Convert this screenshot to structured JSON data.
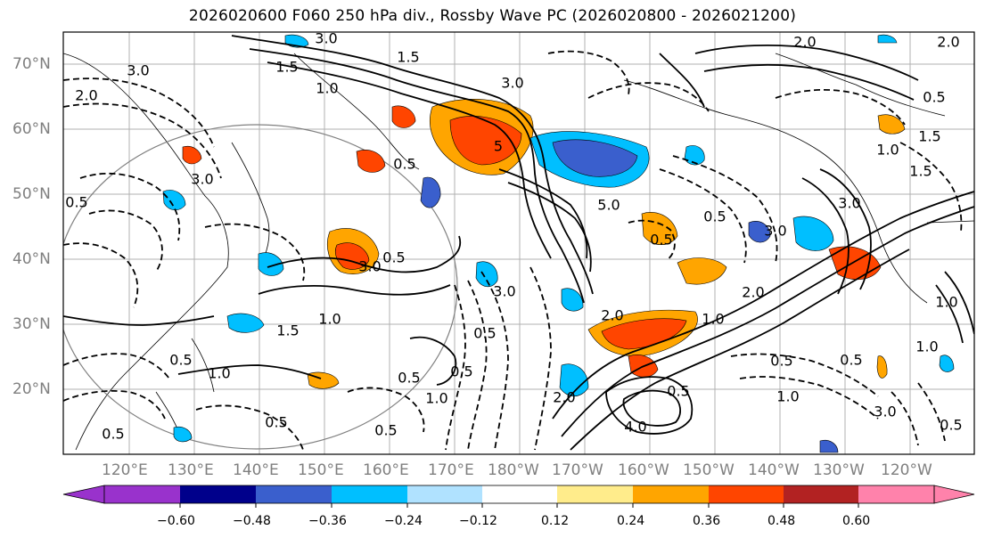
{
  "title": "2026020600 F060 250 hPa div., Rossby Wave PC (2026020800 - 2026021200)",
  "lat_labels": [
    "70°N",
    "60°N",
    "50°N",
    "40°N",
    "30°N",
    "20°N"
  ],
  "lon_labels": [
    "120°E",
    "130°E",
    "140°E",
    "150°E",
    "160°E",
    "170°E",
    "180°W",
    "170°W",
    "160°W",
    "150°W",
    "140°W",
    "130°W",
    "120°W"
  ],
  "colorbar": {
    "colors": [
      "#9932cc",
      "#00008b",
      "#3a5fcd",
      "#00bfff",
      "#b0e2ff",
      "#ffffff",
      "#ffec8b",
      "#ffa500",
      "#ff4500",
      "#b22222",
      "#ff82ab"
    ],
    "tick_labels": [
      "−0.60",
      "−0.48",
      "−0.36",
      "−0.24",
      "−0.12",
      "0.12",
      "0.24",
      "0.36",
      "0.48",
      "0.60"
    ]
  },
  "contour_labels": [
    "3.0",
    "2.0",
    "3.0",
    "2.0",
    "1.5",
    "1.0",
    "3.0",
    "3.0",
    "2.0",
    "1.5",
    "3.0",
    "1.0",
    "1.5",
    "0.5",
    "0.5",
    "3.0",
    "0.5",
    "5.0",
    "0.5",
    "3.0",
    "0.5",
    "0.5",
    "3.0",
    "2.0",
    "1.0",
    "1.5",
    "1.0",
    "1.0",
    "0.5",
    "0.5",
    "1.0",
    "0.5",
    "0.5",
    "0.5",
    "0.5",
    "0.5",
    "2.0",
    "1.0",
    "4.0",
    "2.0",
    "0.5",
    "0.5",
    "1.0",
    "3.0",
    "1.0",
    "0.5",
    "0.5",
    "1.5",
    "5"
  ]
}
